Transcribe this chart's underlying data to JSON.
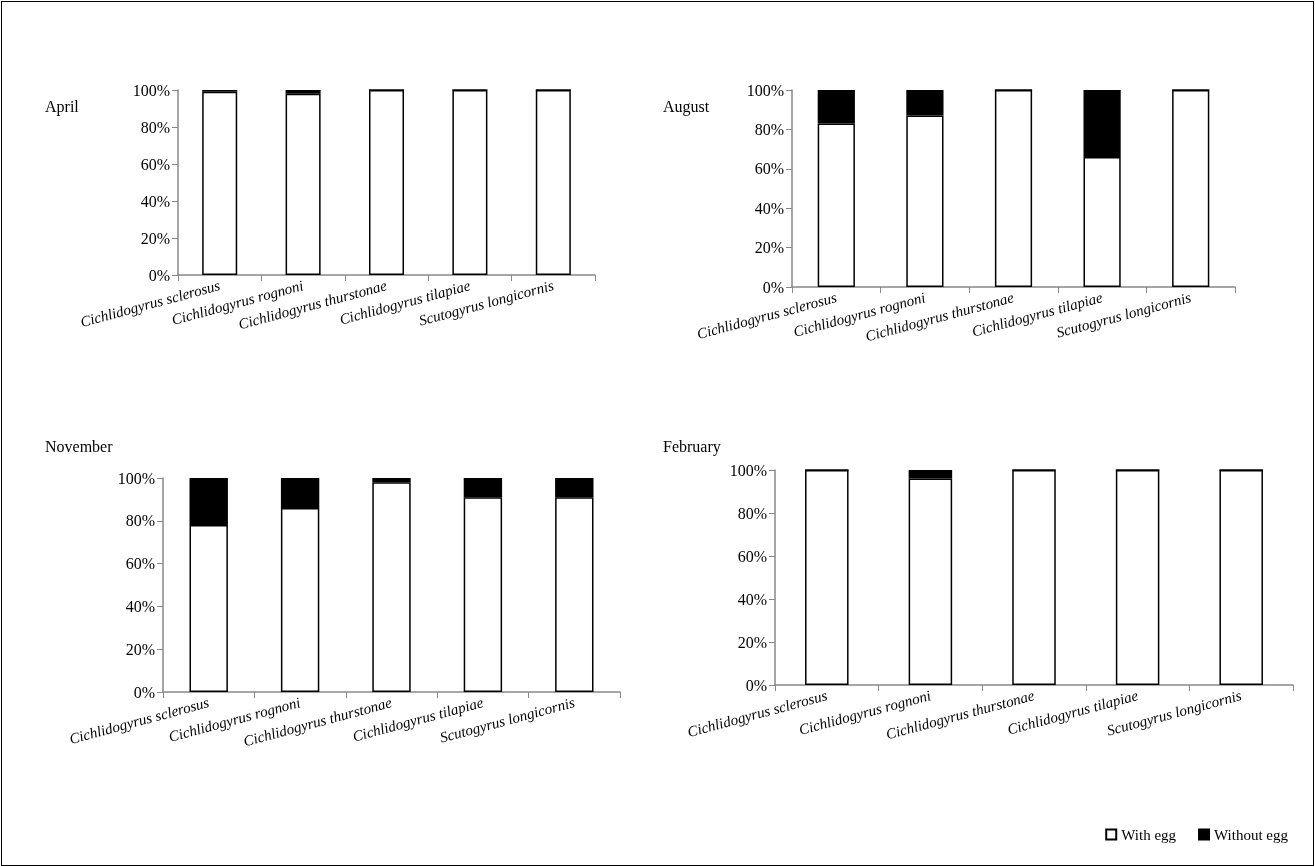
{
  "chart_data": [
    {
      "type": "bar",
      "title": "April",
      "stacked": true,
      "categories": [
        "Cichlidogyrus sclerosus",
        "Cichlidogyrus rognoni",
        "Cichlidogyrus thurstonae",
        "Cichlidogyrus tilapiae",
        "Scutogyrus longicornis"
      ],
      "ylim": [
        0,
        100
      ],
      "yticks": [
        {
          "value": 0,
          "label": "0%"
        },
        {
          "value": 20,
          "label": "20%"
        },
        {
          "value": 40,
          "label": "40%"
        },
        {
          "value": 60,
          "label": "60%"
        },
        {
          "value": 80,
          "label": "80%"
        },
        {
          "value": 100,
          "label": "100%"
        }
      ],
      "grid": false,
      "legend": false,
      "series": [
        {
          "color": "#ffffff",
          "values": [
            99,
            98,
            100,
            100,
            100
          ]
        },
        {
          "color": "#000000",
          "values": [
            1,
            2,
            0,
            0,
            0
          ]
        }
      ]
    },
    {
      "type": "bar",
      "title": "August",
      "stacked": true,
      "categories": [
        "Cichlidogyrus sclerosus",
        "Cichlidogyrus rognoni",
        "Cichlidogyrus thurstonae",
        "Cichlidogyrus tilapiae",
        "Scutogyrus longicornis"
      ],
      "ylim": [
        0,
        100
      ],
      "yticks": [
        {
          "value": 0,
          "label": "0%"
        },
        {
          "value": 20,
          "label": "20%"
        },
        {
          "value": 40,
          "label": "40%"
        },
        {
          "value": 60,
          "label": "60%"
        },
        {
          "value": 80,
          "label": "80%"
        },
        {
          "value": 100,
          "label": "100%"
        }
      ],
      "grid": false,
      "legend": false,
      "series": [
        {
          "color": "#ffffff",
          "values": [
            83,
            87,
            100,
            66,
            100
          ]
        },
        {
          "color": "#000000",
          "values": [
            17,
            13,
            0,
            34,
            0
          ]
        }
      ]
    },
    {
      "type": "bar",
      "title": "November",
      "stacked": true,
      "categories": [
        "Cichlidogyrus sclerosus",
        "Cichlidogyrus rognoni",
        "Cichlidogyrus thurstonae",
        "Cichlidogyrus tilapiae",
        "Scutogyrus longicornis"
      ],
      "ylim": [
        0,
        100
      ],
      "yticks": [
        {
          "value": 0,
          "label": "0%"
        },
        {
          "value": 20,
          "label": "20%"
        },
        {
          "value": 40,
          "label": "40%"
        },
        {
          "value": 60,
          "label": "60%"
        },
        {
          "value": 80,
          "label": "80%"
        },
        {
          "value": 100,
          "label": "100%"
        }
      ],
      "grid": false,
      "legend": false,
      "series": [
        {
          "color": "#ffffff",
          "values": [
            78,
            86,
            98,
            91,
            91
          ]
        },
        {
          "color": "#000000",
          "values": [
            22,
            14,
            2,
            9,
            9
          ]
        }
      ]
    },
    {
      "type": "bar",
      "title": "February",
      "stacked": true,
      "categories": [
        "Cichlidogyrus sclerosus",
        "Cichlidogyrus rognoni",
        "Cichlidogyrus thurstonae",
        "Cichlidogyrus tilapiae",
        "Scutogyrus longicornis"
      ],
      "ylim": [
        0,
        100
      ],
      "yticks": [
        {
          "value": 0,
          "label": "0%"
        },
        {
          "value": 20,
          "label": "20%"
        },
        {
          "value": 40,
          "label": "40%"
        },
        {
          "value": 60,
          "label": "60%"
        },
        {
          "value": 80,
          "label": "80%"
        },
        {
          "value": 100,
          "label": "100%"
        }
      ],
      "grid": false,
      "legend": "bottom right",
      "series": [
        {
          "name": "With egg",
          "color": "#ffffff",
          "values": [
            100,
            96,
            100,
            100,
            100
          ]
        },
        {
          "name": "Without egg",
          "color": "#000000",
          "values": [
            0,
            4,
            0,
            0,
            0
          ]
        }
      ]
    }
  ]
}
